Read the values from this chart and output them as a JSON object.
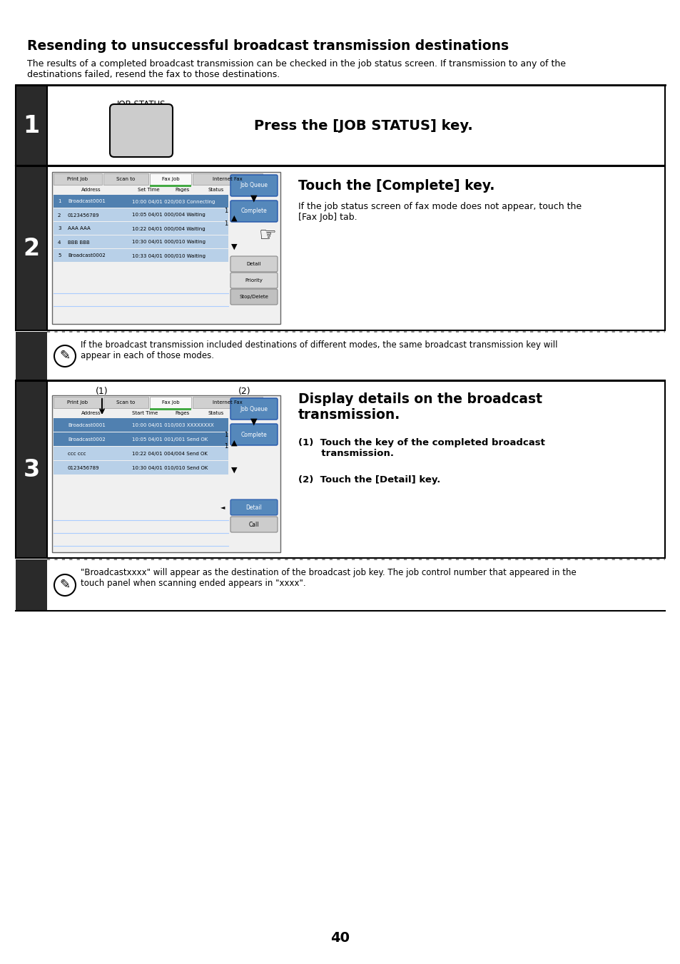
{
  "title": "Resending to unsuccessful broadcast transmission destinations",
  "intro_line1": "The results of a completed broadcast transmission can be checked in the job status screen. If transmission to any of the",
  "intro_line2": "destinations failed, resend the fax to those destinations.",
  "step1_instruction": "Press the [JOB STATUS] key.",
  "step2_instruction_bold": "Touch the [Complete] key.",
  "step2_instruction_detail": "If the job status screen of fax mode does not appear, touch the\n[Fax Job] tab.",
  "step2_note": "If the broadcast transmission included destinations of different modes, the same broadcast transmission key will\nappear in each of those modes.",
  "step3_instruction_bold": "Display details on the broadcast\ntransmission.",
  "step3_sub1": "(1)  Touch the key of the completed broadcast\n       transmission.",
  "step3_sub2": "(2)  Touch the [Detail] key.",
  "step3_note": "\"Broadcastxxxx\" will appear as the destination of the broadcast job key. The job control number that appeared in the\ntouch panel when scanning ended appears in \"xxxx\".",
  "page_number": "40",
  "dark_bg": "#2a2a2a",
  "white": "#ffffff",
  "light_gray": "#cccccc",
  "screen_border": "#666666",
  "tab_active_color": "#ffffff",
  "tab_inactive_color": "#d4d4d4",
  "row_blue_dark": "#5080b0",
  "row_blue_light": "#b8d0e8",
  "btn_blue": "#5588bb",
  "btn_gray": "#cccccc",
  "btn_disabled": "#d8d8d8",
  "green_tab": "#44aa44",
  "dotted_color": "#888888"
}
